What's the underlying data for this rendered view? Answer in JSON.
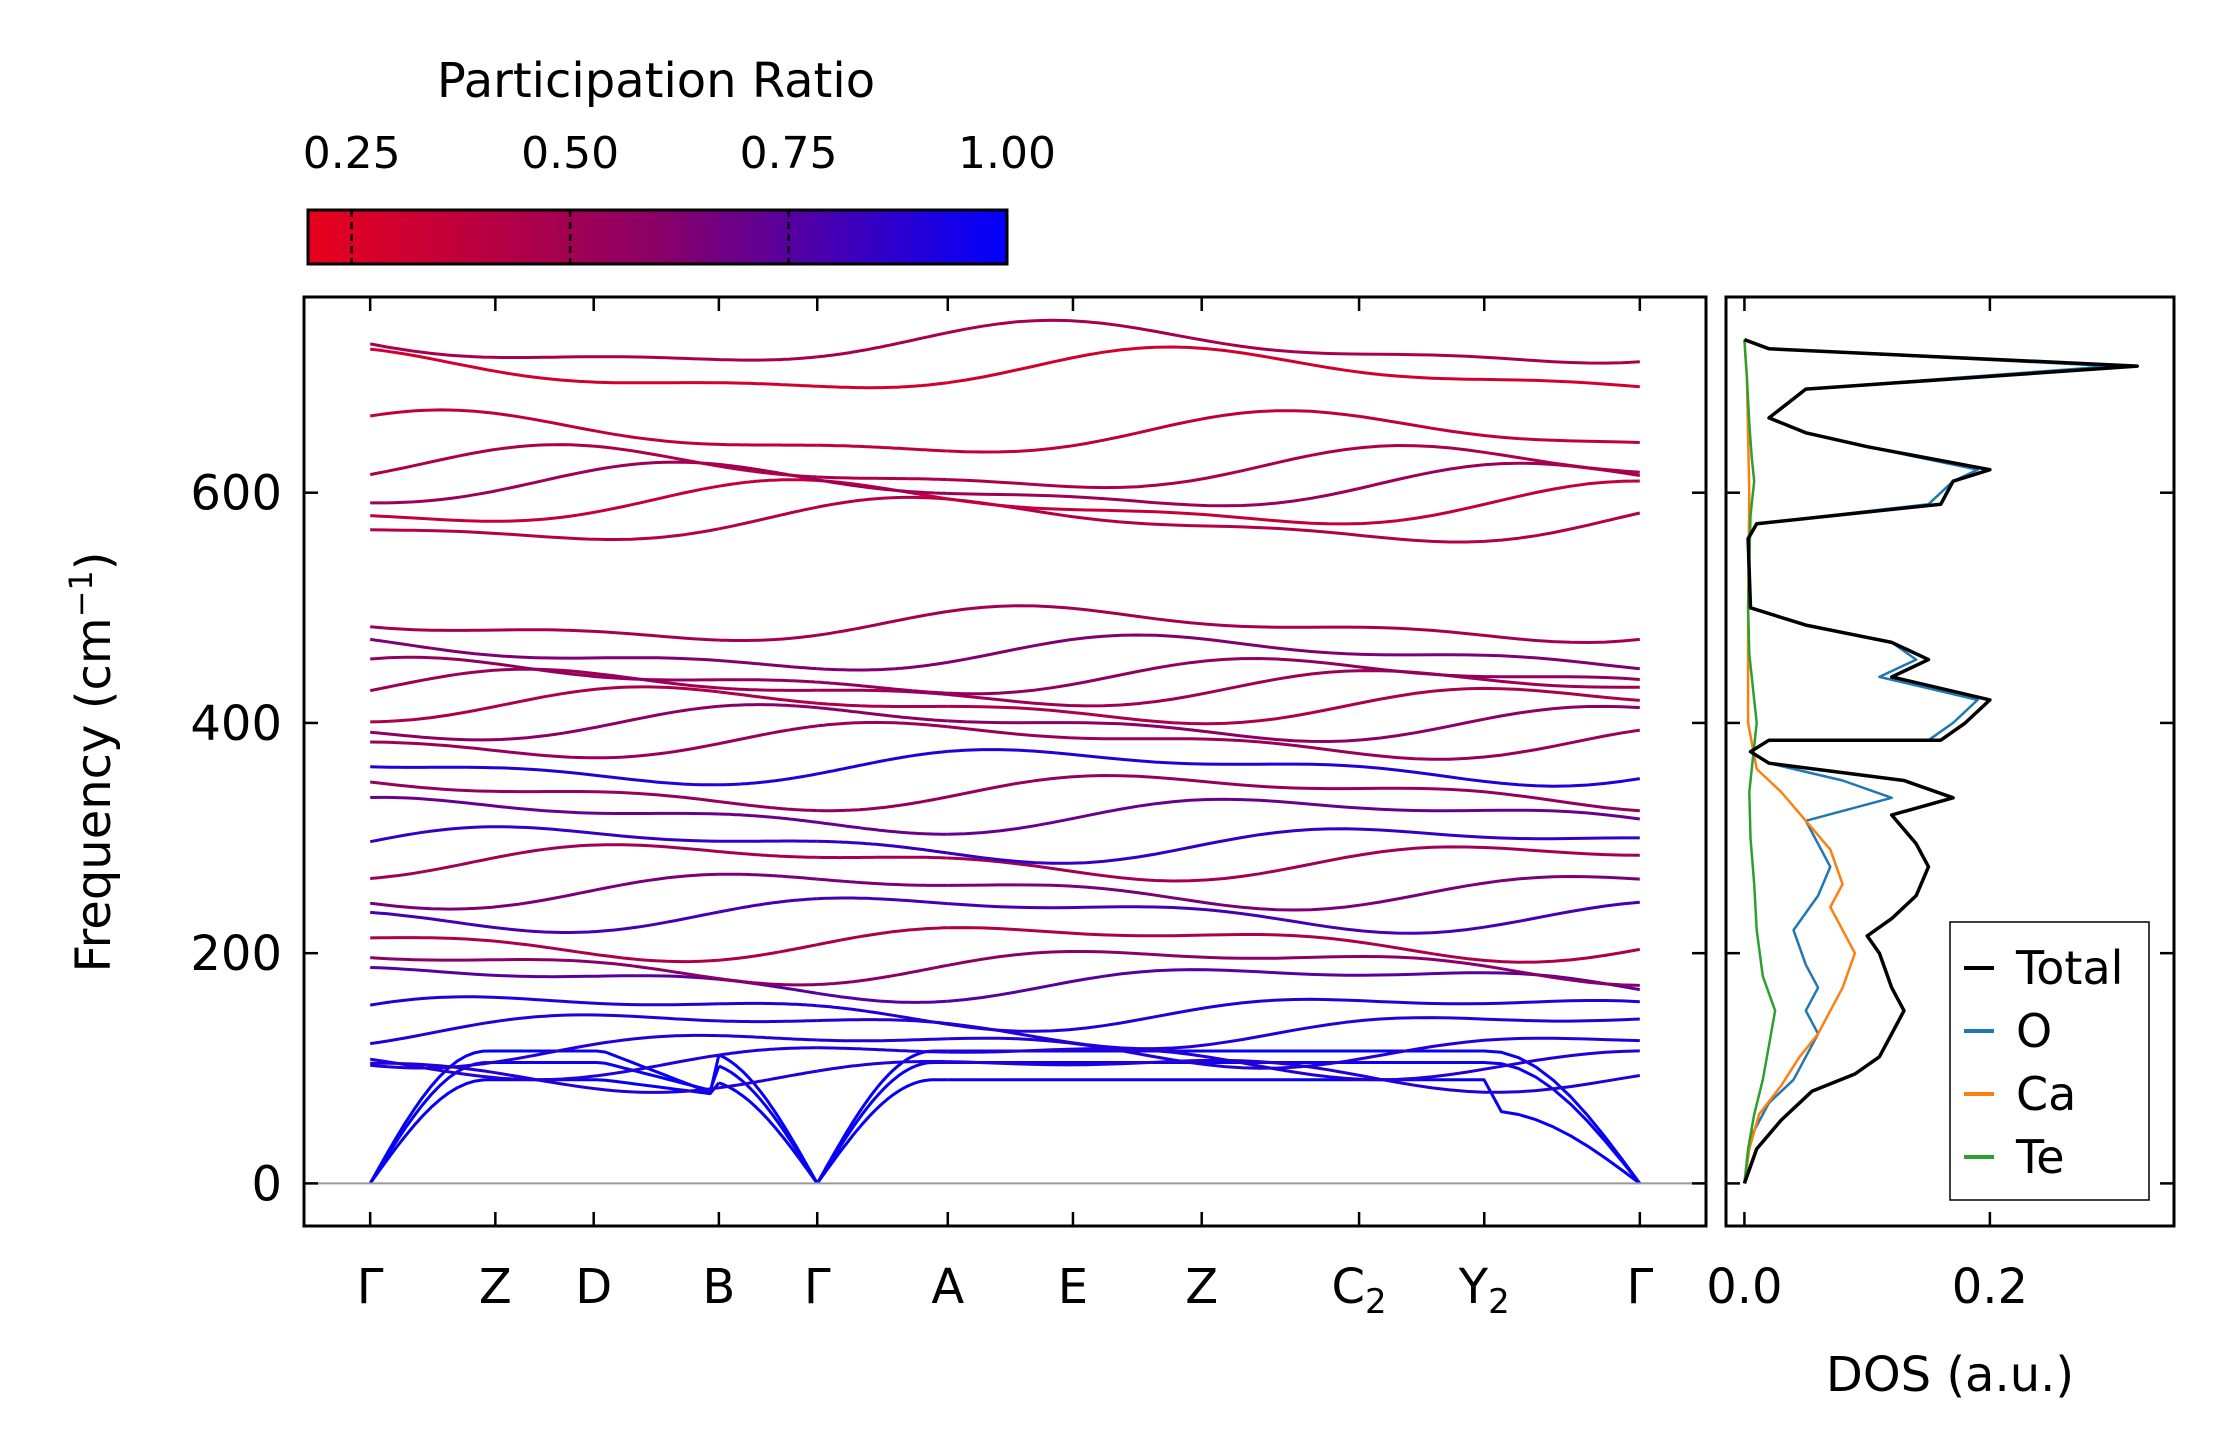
{
  "chart_data": [
    {
      "type": "line",
      "name": "phonon-band-structure",
      "ylabel_main": "Frequency (cm",
      "ylabel_sup": "−1",
      "ylabel_close": ")",
      "ylim": [
        -37,
        770
      ],
      "yticks": [
        0,
        200,
        400,
        600
      ],
      "kpath": [
        {
          "base": "Γ",
          "sub": "",
          "x": 0.0
        },
        {
          "base": "Z",
          "sub": "",
          "x": 0.7
        },
        {
          "base": "D",
          "sub": "",
          "x": 1.25
        },
        {
          "base": "B",
          "sub": "",
          "x": 1.95
        },
        {
          "base": "Γ",
          "sub": "",
          "x": 2.5
        },
        {
          "base": "A",
          "sub": "",
          "x": 3.23
        },
        {
          "base": "E",
          "sub": "",
          "x": 3.93
        },
        {
          "base": "Z",
          "sub": "",
          "x": 4.65
        },
        {
          "base": "C",
          "sub": "2",
          "x": 5.53
        },
        {
          "base": "Y",
          "sub": "2",
          "x": 6.23
        },
        {
          "base": "Γ",
          "sub": "",
          "x": 7.1
        }
      ],
      "xlim": [
        -0.37,
        7.47
      ],
      "segments": [
        [
          0.0,
          1.95
        ],
        [
          1.95,
          2.5
        ],
        [
          2.5,
          3.23
        ],
        [
          3.23,
          7.1
        ]
      ],
      "representative_band_frequencies_at_gamma": [
        0,
        0,
        0,
        97,
        108,
        118,
        135,
        150,
        175,
        190,
        210,
        235,
        255,
        280,
        295,
        320,
        340,
        362,
        385,
        400,
        415,
        430,
        440,
        460,
        485,
        575,
        590,
        605,
        620,
        650,
        705,
        728
      ]
    },
    {
      "type": "colorbar",
      "title": "Participation Ratio",
      "range": [
        0.2,
        1.0
      ],
      "ticks": [
        0.25,
        0.5,
        0.75,
        1.0
      ],
      "tick_labels": [
        "0.25",
        "0.50",
        "0.75",
        "1.00"
      ],
      "colors": [
        "#e8001c",
        "#8a0066",
        "#0000ff"
      ]
    },
    {
      "type": "line",
      "name": "density-of-states",
      "xlabel": "DOS (a.u.)",
      "xlim": [
        -0.015,
        0.35
      ],
      "xticks": [
        0.0,
        0.2
      ],
      "xtick_labels": [
        "0.0",
        "0.2"
      ],
      "ylim": [
        -37,
        770
      ],
      "legend_placement": "lower-right",
      "series": [
        {
          "name": "Total",
          "color": "#000000",
          "points": [
            [
              0,
              0
            ],
            [
              0.01,
              30
            ],
            [
              0.03,
              55
            ],
            [
              0.055,
              80
            ],
            [
              0.09,
              95
            ],
            [
              0.11,
              110
            ],
            [
              0.12,
              130
            ],
            [
              0.13,
              150
            ],
            [
              0.12,
              170
            ],
            [
              0.11,
              200
            ],
            [
              0.1,
              215
            ],
            [
              0.12,
              230
            ],
            [
              0.14,
              250
            ],
            [
              0.15,
              275
            ],
            [
              0.14,
              295
            ],
            [
              0.12,
              320
            ],
            [
              0.17,
              335
            ],
            [
              0.13,
              350
            ],
            [
              0.02,
              365
            ],
            [
              0.005,
              375
            ],
            [
              0.02,
              385
            ],
            [
              0.16,
              385
            ],
            [
              0.18,
              400
            ],
            [
              0.2,
              420
            ],
            [
              0.12,
              440
            ],
            [
              0.15,
              455
            ],
            [
              0.12,
              470
            ],
            [
              0.05,
              485
            ],
            [
              0.005,
              500
            ],
            [
              0.003,
              560
            ],
            [
              0.01,
              573
            ],
            [
              0.16,
              590
            ],
            [
              0.17,
              610
            ],
            [
              0.2,
              620
            ],
            [
              0.1,
              640
            ],
            [
              0.05,
              652
            ],
            [
              0.02,
              665
            ],
            [
              0.05,
              690
            ],
            [
              0.32,
              710
            ],
            [
              0.02,
              725
            ],
            [
              0,
              733
            ]
          ]
        },
        {
          "name": "O",
          "color": "#1f77b4",
          "points": [
            [
              0,
              0
            ],
            [
              0.005,
              40
            ],
            [
              0.02,
              70
            ],
            [
              0.04,
              90
            ],
            [
              0.05,
              110
            ],
            [
              0.06,
              130
            ],
            [
              0.05,
              150
            ],
            [
              0.06,
              170
            ],
            [
              0.05,
              190
            ],
            [
              0.04,
              220
            ],
            [
              0.06,
              250
            ],
            [
              0.07,
              275
            ],
            [
              0.06,
              295
            ],
            [
              0.05,
              315
            ],
            [
              0.12,
              335
            ],
            [
              0.08,
              350
            ],
            [
              0.02,
              365
            ],
            [
              0.005,
              375
            ],
            [
              0.02,
              385
            ],
            [
              0.15,
              385
            ],
            [
              0.17,
              400
            ],
            [
              0.19,
              420
            ],
            [
              0.11,
              440
            ],
            [
              0.14,
              455
            ],
            [
              0.12,
              470
            ],
            [
              0.05,
              485
            ],
            [
              0.005,
              500
            ],
            [
              0.003,
              560
            ],
            [
              0.01,
              573
            ],
            [
              0.15,
              590
            ],
            [
              0.17,
              610
            ],
            [
              0.19,
              620
            ],
            [
              0.1,
              640
            ],
            [
              0.05,
              652
            ],
            [
              0.02,
              665
            ],
            [
              0.05,
              690
            ],
            [
              0.3,
              710
            ],
            [
              0.02,
              725
            ],
            [
              0,
              733
            ]
          ]
        },
        {
          "name": "Ca",
          "color": "#ff7f0e",
          "points": [
            [
              0,
              0
            ],
            [
              0.004,
              30
            ],
            [
              0.012,
              60
            ],
            [
              0.03,
              85
            ],
            [
              0.045,
              110
            ],
            [
              0.06,
              130
            ],
            [
              0.07,
              150
            ],
            [
              0.08,
              170
            ],
            [
              0.09,
              200
            ],
            [
              0.08,
              220
            ],
            [
              0.07,
              240
            ],
            [
              0.08,
              260
            ],
            [
              0.07,
              290
            ],
            [
              0.05,
              315
            ],
            [
              0.03,
              340
            ],
            [
              0.01,
              360
            ],
            [
              0.003,
              400
            ],
            [
              0.003,
              500
            ],
            [
              0.004,
              600
            ],
            [
              0.002,
              700
            ],
            [
              0,
              733
            ]
          ]
        },
        {
          "name": "Te",
          "color": "#2ca02c",
          "points": [
            [
              0,
              0
            ],
            [
              0.003,
              30
            ],
            [
              0.008,
              60
            ],
            [
              0.015,
              90
            ],
            [
              0.02,
              120
            ],
            [
              0.025,
              150
            ],
            [
              0.015,
              180
            ],
            [
              0.01,
              220
            ],
            [
              0.008,
              260
            ],
            [
              0.005,
              300
            ],
            [
              0.004,
              340
            ],
            [
              0.008,
              380
            ],
            [
              0.01,
              400
            ],
            [
              0.008,
              420
            ],
            [
              0.004,
              460
            ],
            [
              0.003,
              500
            ],
            [
              0.005,
              580
            ],
            [
              0.008,
              610
            ],
            [
              0.006,
              630
            ],
            [
              0.004,
              660
            ],
            [
              0.002,
              700
            ],
            [
              0,
              733
            ]
          ]
        }
      ]
    }
  ]
}
